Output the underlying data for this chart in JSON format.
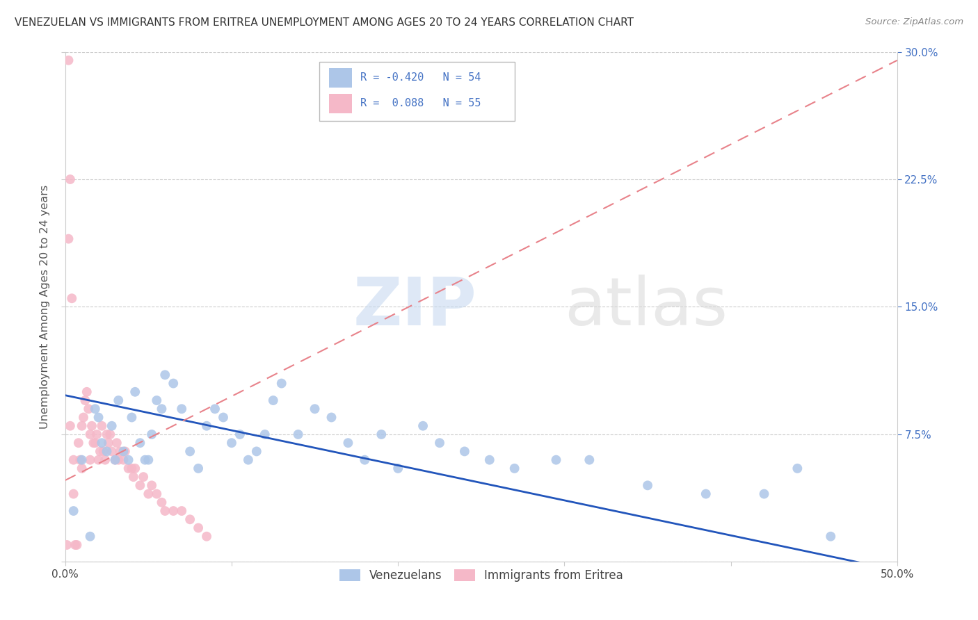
{
  "title": "VENEZUELAN VS IMMIGRANTS FROM ERITREA UNEMPLOYMENT AMONG AGES 20 TO 24 YEARS CORRELATION CHART",
  "source": "Source: ZipAtlas.com",
  "ylabel": "Unemployment Among Ages 20 to 24 years",
  "xlim": [
    0.0,
    0.5
  ],
  "ylim": [
    0.0,
    0.3
  ],
  "legend_r_venezuelan": "-0.420",
  "legend_n_venezuelan": "54",
  "legend_r_eritrea": "0.088",
  "legend_n_eritrea": "55",
  "venezuelan_color": "#adc6e8",
  "eritrea_color": "#f5b8c8",
  "venezuelan_line_color": "#2255bb",
  "eritrea_line_color": "#e8828a",
  "background_color": "#ffffff",
  "venezuelan_x": [
    0.005,
    0.01,
    0.015,
    0.018,
    0.02,
    0.022,
    0.025,
    0.028,
    0.03,
    0.032,
    0.035,
    0.038,
    0.04,
    0.042,
    0.045,
    0.048,
    0.05,
    0.052,
    0.055,
    0.058,
    0.06,
    0.065,
    0.07,
    0.075,
    0.08,
    0.085,
    0.09,
    0.095,
    0.1,
    0.105,
    0.11,
    0.115,
    0.12,
    0.125,
    0.13,
    0.14,
    0.15,
    0.16,
    0.17,
    0.18,
    0.19,
    0.2,
    0.215,
    0.225,
    0.24,
    0.255,
    0.27,
    0.295,
    0.315,
    0.35,
    0.385,
    0.42,
    0.44,
    0.46
  ],
  "venezuelan_y": [
    0.03,
    0.06,
    0.015,
    0.09,
    0.085,
    0.07,
    0.065,
    0.08,
    0.06,
    0.095,
    0.065,
    0.06,
    0.085,
    0.1,
    0.07,
    0.06,
    0.06,
    0.075,
    0.095,
    0.09,
    0.11,
    0.105,
    0.09,
    0.065,
    0.055,
    0.08,
    0.09,
    0.085,
    0.07,
    0.075,
    0.06,
    0.065,
    0.075,
    0.095,
    0.105,
    0.075,
    0.09,
    0.085,
    0.07,
    0.06,
    0.075,
    0.055,
    0.08,
    0.07,
    0.065,
    0.06,
    0.055,
    0.06,
    0.06,
    0.045,
    0.04,
    0.04,
    0.055,
    0.015
  ],
  "eritrea_x": [
    0.002,
    0.003,
    0.005,
    0.005,
    0.006,
    0.007,
    0.008,
    0.009,
    0.01,
    0.01,
    0.011,
    0.012,
    0.013,
    0.014,
    0.015,
    0.015,
    0.016,
    0.017,
    0.018,
    0.019,
    0.02,
    0.021,
    0.022,
    0.023,
    0.024,
    0.025,
    0.026,
    0.027,
    0.028,
    0.03,
    0.031,
    0.032,
    0.033,
    0.035,
    0.036,
    0.038,
    0.04,
    0.041,
    0.042,
    0.045,
    0.047,
    0.05,
    0.052,
    0.055,
    0.058,
    0.06,
    0.065,
    0.07,
    0.075,
    0.08,
    0.085,
    0.003,
    0.002,
    0.004,
    0.001
  ],
  "eritrea_y": [
    0.295,
    0.08,
    0.06,
    0.04,
    0.01,
    0.01,
    0.07,
    0.06,
    0.08,
    0.055,
    0.085,
    0.095,
    0.1,
    0.09,
    0.075,
    0.06,
    0.08,
    0.07,
    0.07,
    0.075,
    0.06,
    0.065,
    0.08,
    0.065,
    0.06,
    0.075,
    0.07,
    0.075,
    0.065,
    0.06,
    0.07,
    0.06,
    0.065,
    0.06,
    0.065,
    0.055,
    0.055,
    0.05,
    0.055,
    0.045,
    0.05,
    0.04,
    0.045,
    0.04,
    0.035,
    0.03,
    0.03,
    0.03,
    0.025,
    0.02,
    0.015,
    0.225,
    0.19,
    0.155,
    0.01
  ],
  "blue_trend_start_y": 0.098,
  "blue_trend_end_y": -0.005,
  "pink_trend_start_y": 0.048,
  "pink_trend_end_y": 0.295
}
